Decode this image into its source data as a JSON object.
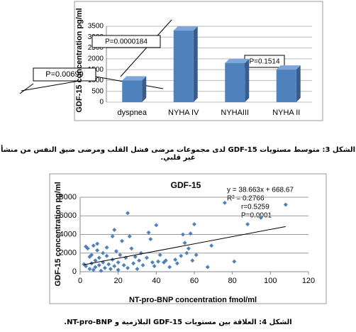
{
  "chart_data": [
    {
      "type": "bar",
      "ylabel": "GDF-15 concentration pg/ml",
      "categories": [
        "dyspnea",
        "NYHA IV",
        "NYHAIII",
        "NYHA II"
      ],
      "values": [
        1000,
        3300,
        1800,
        1500
      ],
      "color": "#4f81bd",
      "ylim": [
        0,
        3500
      ],
      "yticks": [
        0,
        500,
        1000,
        1500,
        2000,
        2500,
        3000,
        3500
      ],
      "grid": true,
      "annotations": [
        "P=0.0000184",
        "P=0.00699",
        "P=0.1514"
      ],
      "caption": "الشكل 3: متوسط مستويات GDF-15 لدى مجموعات مرضى فشل القلب ومرضى ضيق النفس من منشأ غير قلبي."
    },
    {
      "type": "scatter",
      "title": "GDF-15",
      "xlabel": "NT-pro-BNP concentration fmol/ml",
      "ylabel": "GDF-15 concentration pg/ml",
      "x": [
        2,
        3,
        4,
        3,
        5,
        5,
        6,
        6,
        7,
        7,
        8,
        8,
        9,
        9,
        10,
        10,
        11,
        12,
        12,
        13,
        14,
        14,
        15,
        16,
        17,
        17,
        18,
        18,
        19,
        20,
        20,
        21,
        22,
        23,
        24,
        25,
        25,
        26,
        27,
        28,
        29,
        30,
        31,
        32,
        33,
        35,
        36,
        37,
        38,
        39,
        40,
        41,
        42,
        44,
        45,
        47,
        50,
        51,
        53,
        54,
        55,
        56,
        57,
        58,
        59,
        60,
        61,
        67,
        69,
        76,
        81,
        88,
        95,
        108
      ],
      "values": [
        800,
        2700,
        2500,
        600,
        1600,
        300,
        1800,
        900,
        2800,
        200,
        1200,
        500,
        2300,
        3000,
        1500,
        700,
        100,
        2000,
        1000,
        400,
        2600,
        1700,
        800,
        300,
        3800,
        1300,
        4500,
        600,
        2200,
        1000,
        200,
        1800,
        3300,
        700,
        1500,
        6300,
        400,
        3800,
        2500,
        900,
        1600,
        300,
        1200,
        2000,
        700,
        1500,
        4200,
        3500,
        1000,
        600,
        5000,
        1100,
        1800,
        1000,
        1200,
        500,
        1300,
        900,
        1700,
        4000,
        3100,
        2000,
        2500,
        4100,
        1200,
        5100,
        1800,
        500,
        2800,
        7400,
        1100,
        5100,
        5800,
        7200
      ],
      "color": "#4f81bd",
      "xlim": [
        0,
        120
      ],
      "xticks": [
        0,
        20,
        40,
        60,
        80,
        100,
        120
      ],
      "ylim": [
        0,
        8000
      ],
      "yticks": [
        0,
        2000,
        4000,
        6000,
        8000
      ],
      "grid": true,
      "annotations": [
        "y = 38.663x + 668.67",
        "R² = 0.2766",
        "r=0.5259",
        "P=0.0001"
      ],
      "trendline": {
        "x": [
          2,
          108
        ],
        "values": [
          750,
          4850
        ]
      },
      "caption": "الشكل 4: العلاقة بين مستويات GDF-15 البلازمية و NT-pro-BNP."
    }
  ]
}
